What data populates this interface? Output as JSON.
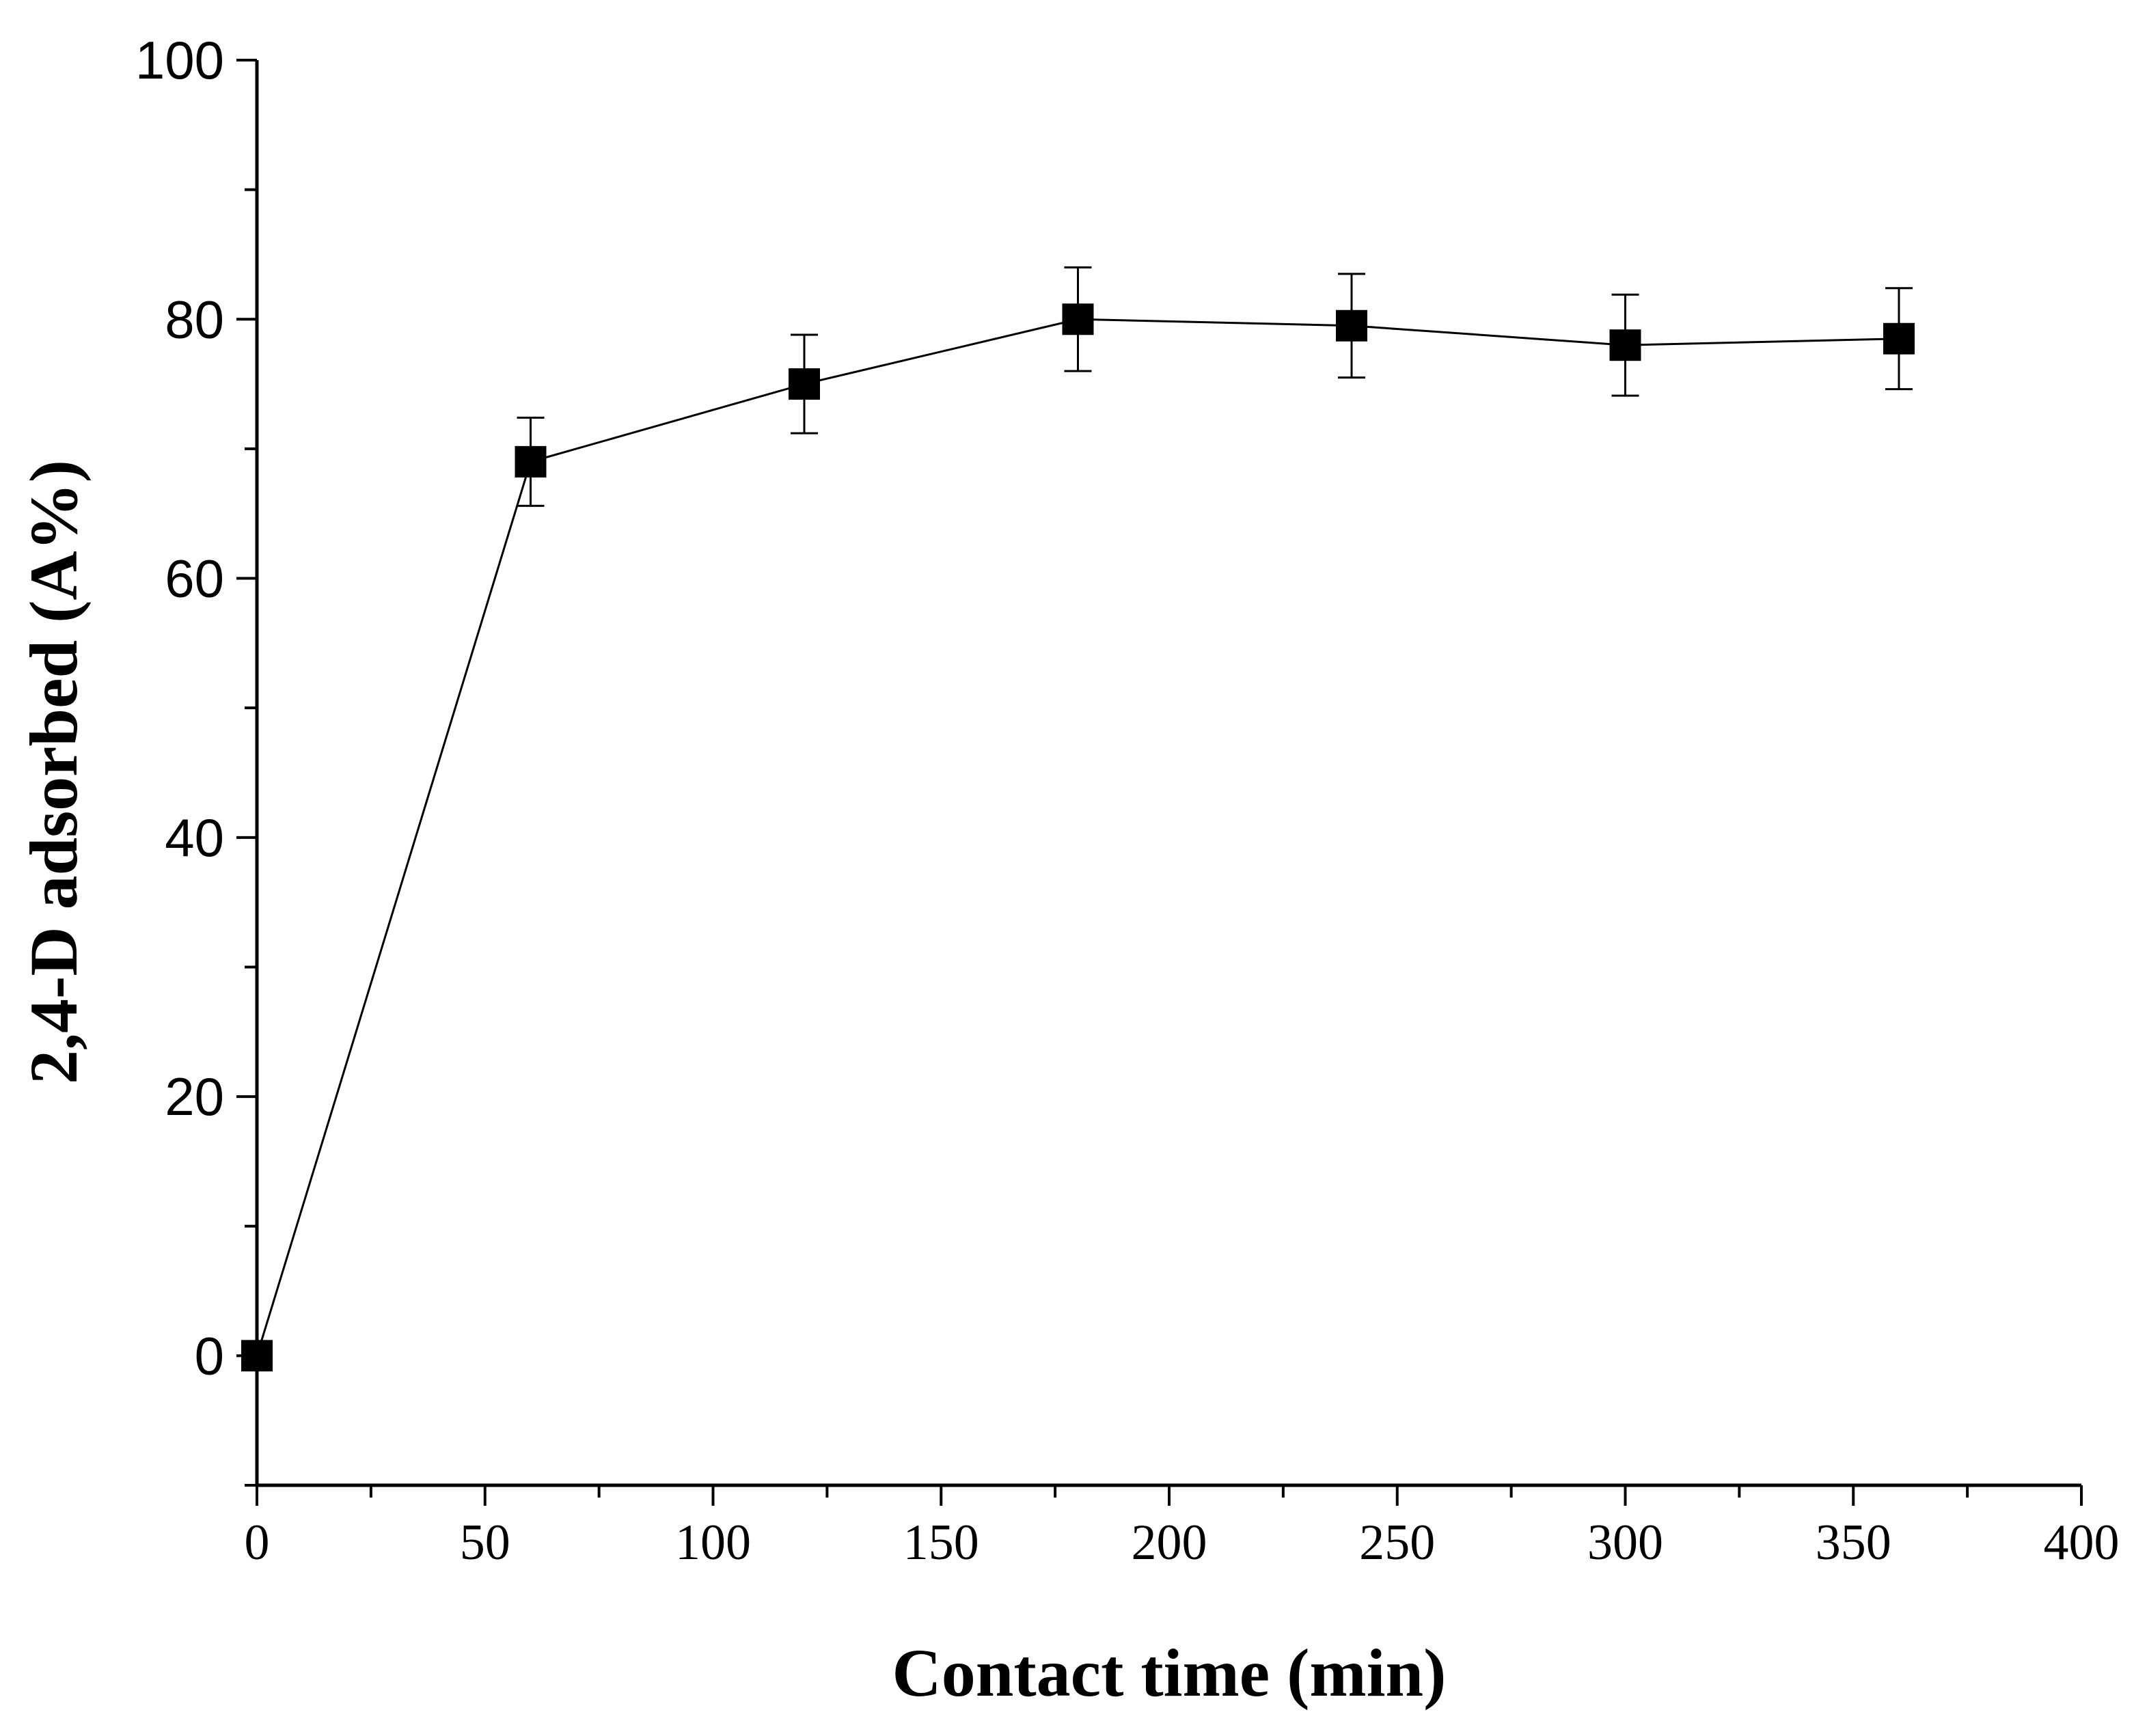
{
  "chart_data": {
    "type": "scatter",
    "title": "",
    "xlabel": "Contact time (min)",
    "ylabel": "2,4-D adsorbed (A%)",
    "xlim": [
      0,
      400
    ],
    "ylim": [
      -10,
      100
    ],
    "x_ticks": [
      "0",
      "50",
      "100",
      "150",
      "200",
      "250",
      "300",
      "350",
      "400"
    ],
    "y_ticks": [
      "0",
      "20",
      "40",
      "60",
      "80",
      "100"
    ],
    "grid": false,
    "legend": "none",
    "colors": {
      "line": "#000000",
      "marker": "#000000",
      "background": "#ffffff"
    },
    "series": [
      {
        "x": [
          0,
          60,
          120,
          180,
          240,
          300,
          360
        ],
        "y": [
          0,
          69,
          75,
          80,
          79.5,
          78,
          78.5
        ],
        "error": [
          0,
          3.4,
          3.8,
          4.0,
          4.0,
          3.9,
          3.9
        ],
        "marker": "square",
        "line": "solid"
      }
    ]
  }
}
